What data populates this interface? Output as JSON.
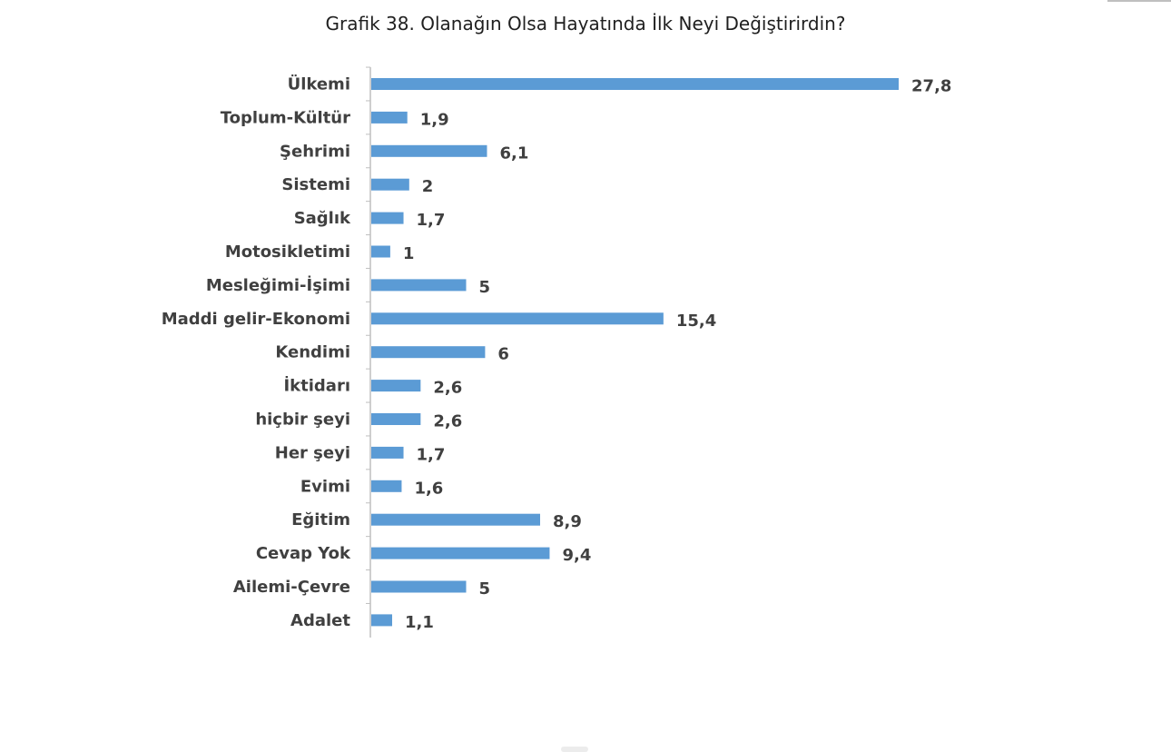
{
  "chart_data": {
    "type": "bar",
    "orientation": "horizontal",
    "title": "Grafik 38. Olanağın Olsa Hayatında İlk Neyi Değiştirirdin?",
    "categories": [
      "Ülkemi",
      "Toplum-Kültür",
      "Şehrimi",
      "Sistemi",
      "Sağlık",
      "Motosikletimi",
      "Mesleğimi-İşimi",
      "Maddi gelir-Ekonomi",
      "Kendimi",
      "İktidarı",
      "hiçbir şeyi",
      "Her şeyi",
      "Evimi",
      "Eğitim",
      "Cevap Yok",
      "Ailemi-Çevre",
      "Adalet"
    ],
    "values": [
      27.8,
      1.9,
      6.1,
      2,
      1.7,
      1,
      5,
      15.4,
      6,
      2.6,
      2.6,
      1.7,
      1.6,
      8.9,
      9.4,
      5,
      1.1
    ],
    "value_labels": [
      "27,8",
      "1,9",
      "6,1",
      "2",
      "1,7",
      "1",
      "5",
      "15,4",
      "6",
      "2,6",
      "2,6",
      "1,7",
      "1,6",
      "8,9",
      "9,4",
      "5",
      "1,1"
    ],
    "xlabel": "",
    "ylabel": "",
    "xlim": [
      0,
      30
    ],
    "grid": false,
    "legend": "none",
    "bar_color": "#5b9bd5",
    "axis_color": "#bfbfbf"
  }
}
